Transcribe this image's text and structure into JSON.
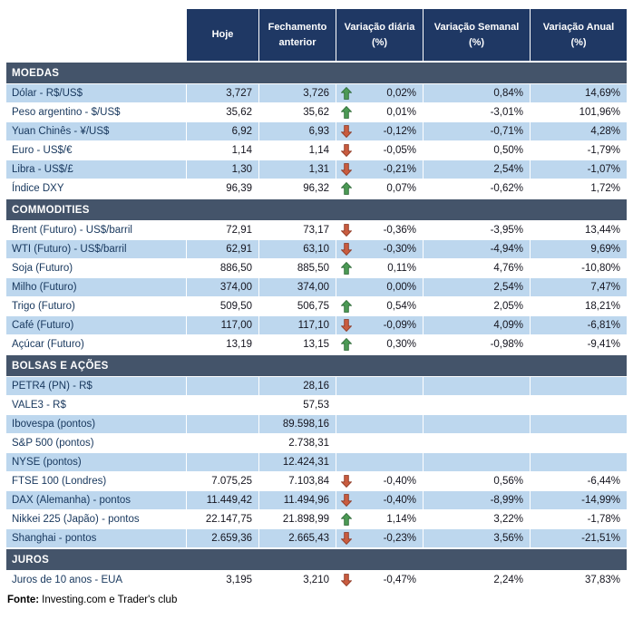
{
  "chart_data": {
    "type": "table",
    "columns": [
      "Hoje",
      "Fechamento anterior",
      "Variação diária (%)",
      "Variação Semanal (%)",
      "Variação Anual (%)"
    ],
    "sections": [
      {
        "title": "MOEDAS",
        "shade_start": true,
        "rows": [
          {
            "label": "Dólar - R$/US$",
            "hoje": "3,727",
            "fechamento": "3,726",
            "trend": "up",
            "var_diaria": "0,02%",
            "var_semanal": "0,84%",
            "var_anual": "14,69%"
          },
          {
            "label": "Peso argentino - $/US$",
            "hoje": "35,62",
            "fechamento": "35,62",
            "trend": "up",
            "var_diaria": "0,01%",
            "var_semanal": "-3,01%",
            "var_anual": "101,96%"
          },
          {
            "label": "Yuan Chinês - ¥/US$",
            "hoje": "6,92",
            "fechamento": "6,93",
            "trend": "down",
            "var_diaria": "-0,12%",
            "var_semanal": "-0,71%",
            "var_anual": "4,28%"
          },
          {
            "label": "Euro - US$/€",
            "hoje": "1,14",
            "fechamento": "1,14",
            "trend": "down",
            "var_diaria": "-0,05%",
            "var_semanal": "0,50%",
            "var_anual": "-1,79%"
          },
          {
            "label": "Libra - US$/£",
            "hoje": "1,30",
            "fechamento": "1,31",
            "trend": "down",
            "var_diaria": "-0,21%",
            "var_semanal": "2,54%",
            "var_anual": "-1,07%"
          },
          {
            "label": "Índice DXY",
            "hoje": "96,39",
            "fechamento": "96,32",
            "trend": "up",
            "var_diaria": "0,07%",
            "var_semanal": "-0,62%",
            "var_anual": "1,72%"
          }
        ]
      },
      {
        "title": "COMMODITIES",
        "shade_start": false,
        "rows": [
          {
            "label": "Brent (Futuro) - US$/barril",
            "hoje": "72,91",
            "fechamento": "73,17",
            "trend": "down",
            "var_diaria": "-0,36%",
            "var_semanal": "-3,95%",
            "var_anual": "13,44%"
          },
          {
            "label": "WTI (Futuro) - US$/barril",
            "hoje": "62,91",
            "fechamento": "63,10",
            "trend": "down",
            "var_diaria": "-0,30%",
            "var_semanal": "-4,94%",
            "var_anual": "9,69%"
          },
          {
            "label": "Soja (Futuro)",
            "hoje": "886,50",
            "fechamento": "885,50",
            "trend": "up",
            "var_diaria": "0,11%",
            "var_semanal": "4,76%",
            "var_anual": "-10,80%"
          },
          {
            "label": "Milho (Futuro)",
            "hoje": "374,00",
            "fechamento": "374,00",
            "trend": "",
            "var_diaria": "0,00%",
            "var_semanal": "2,54%",
            "var_anual": "7,47%"
          },
          {
            "label": "Trigo (Futuro)",
            "hoje": "509,50",
            "fechamento": "506,75",
            "trend": "up",
            "var_diaria": "0,54%",
            "var_semanal": "2,05%",
            "var_anual": "18,21%"
          },
          {
            "label": "Café (Futuro)",
            "hoje": "117,00",
            "fechamento": "117,10",
            "trend": "down",
            "var_diaria": "-0,09%",
            "var_semanal": "4,09%",
            "var_anual": "-6,81%"
          },
          {
            "label": "Açúcar (Futuro)",
            "hoje": "13,19",
            "fechamento": "13,15",
            "trend": "up",
            "var_diaria": "0,30%",
            "var_semanal": "-0,98%",
            "var_anual": "-9,41%"
          }
        ]
      },
      {
        "title": "BOLSAS E AÇÕES",
        "shade_start": true,
        "rows": [
          {
            "label": "PETR4 (PN) - R$",
            "hoje": "",
            "fechamento": "28,16",
            "trend": "",
            "var_diaria": "",
            "var_semanal": "",
            "var_anual": ""
          },
          {
            "label": "VALE3 - R$",
            "hoje": "",
            "fechamento": "57,53",
            "trend": "",
            "var_diaria": "",
            "var_semanal": "",
            "var_anual": ""
          },
          {
            "label": "Ibovespa (pontos)",
            "hoje": "",
            "fechamento": "89.598,16",
            "trend": "",
            "var_diaria": "",
            "var_semanal": "",
            "var_anual": ""
          },
          {
            "label": "S&P 500 (pontos)",
            "hoje": "",
            "fechamento": "2.738,31",
            "trend": "",
            "var_diaria": "",
            "var_semanal": "",
            "var_anual": ""
          },
          {
            "label": "NYSE (pontos)",
            "hoje": "",
            "fechamento": "12.424,31",
            "trend": "",
            "var_diaria": "",
            "var_semanal": "",
            "var_anual": ""
          },
          {
            "label": "FTSE 100 (Londres)",
            "hoje": "7.075,25",
            "fechamento": "7.103,84",
            "trend": "down",
            "var_diaria": "-0,40%",
            "var_semanal": "0,56%",
            "var_anual": "-6,44%"
          },
          {
            "label": "DAX (Alemanha) - pontos",
            "hoje": "11.449,42",
            "fechamento": "11.494,96",
            "trend": "down",
            "var_diaria": "-0,40%",
            "var_semanal": "-8,99%",
            "var_anual": "-14,99%"
          },
          {
            "label": "Nikkei 225 (Japão) - pontos",
            "hoje": "22.147,75",
            "fechamento": "21.898,99",
            "trend": "up",
            "var_diaria": "1,14%",
            "var_semanal": "3,22%",
            "var_anual": "-1,78%"
          },
          {
            "label": "Shanghai - pontos",
            "hoje": "2.659,36",
            "fechamento": "2.665,43",
            "trend": "down",
            "var_diaria": "-0,23%",
            "var_semanal": "3,56%",
            "var_anual": "-21,51%"
          }
        ]
      },
      {
        "title": "JUROS",
        "shade_start": false,
        "rows": [
          {
            "label": "Juros de 10 anos - EUA",
            "hoje": "3,195",
            "fechamento": "3,210",
            "trend": "down",
            "var_diaria": "-0,47%",
            "var_semanal": "2,24%",
            "var_anual": "37,83%"
          }
        ]
      }
    ]
  },
  "footer": {
    "source_label": "Fonte:",
    "source_text": "Investing.com e Trader's club"
  },
  "colors": {
    "header_bg": "#1F3864",
    "section_bg": "#44546A",
    "shaded_row_bg": "#BDD7EE",
    "up_arrow": "#4C9A55",
    "up_arrow_stroke": "#2F6B38",
    "down_arrow": "#C95C3F",
    "down_arrow_stroke": "#8F3A26"
  }
}
